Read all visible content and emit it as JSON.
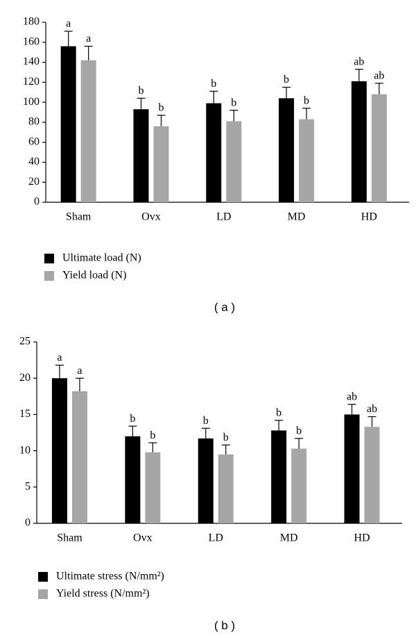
{
  "chart_data": [
    {
      "type": "bar",
      "panel_label": "( a )",
      "categories": [
        "Sham",
        "Ovx",
        "LD",
        "MD",
        "HD"
      ],
      "ylim": [
        0,
        180
      ],
      "yticks": [
        0,
        20,
        40,
        60,
        80,
        100,
        120,
        140,
        160,
        180
      ],
      "grid": false,
      "series": [
        {
          "name": "Ultimate load (N)",
          "color": "#000000",
          "values": [
            156,
            93,
            99,
            104,
            121
          ],
          "errors": [
            15,
            11,
            12,
            11,
            12
          ],
          "letters": [
            "a",
            "b",
            "b",
            "b",
            "ab"
          ]
        },
        {
          "name": "Yield load (N)",
          "color": "#a6a6a6",
          "values": [
            142,
            76,
            81,
            83,
            108
          ],
          "errors": [
            14,
            11,
            11,
            11,
            11
          ],
          "letters": [
            "a",
            "b",
            "b",
            "b",
            "ab"
          ]
        }
      ]
    },
    {
      "type": "bar",
      "panel_label": "( b )",
      "categories": [
        "Sham",
        "Ovx",
        "LD",
        "MD",
        "HD"
      ],
      "ylim": [
        0,
        25
      ],
      "yticks": [
        0,
        5,
        10,
        15,
        20,
        25
      ],
      "grid": false,
      "series": [
        {
          "name": "Ultimate stress (N/mm²)",
          "color": "#000000",
          "values": [
            20,
            12,
            11.7,
            12.8,
            15
          ],
          "errors": [
            1.8,
            1.4,
            1.4,
            1.4,
            1.4
          ],
          "letters": [
            "a",
            "b",
            "b",
            "b",
            "ab"
          ]
        },
        {
          "name": "Yield stress (N/mm²)",
          "color": "#a6a6a6",
          "values": [
            18.2,
            9.8,
            9.5,
            10.3,
            13.3
          ],
          "errors": [
            1.8,
            1.3,
            1.3,
            1.4,
            1.4
          ],
          "letters": [
            "a",
            "b",
            "b",
            "b",
            "ab"
          ]
        }
      ]
    }
  ]
}
